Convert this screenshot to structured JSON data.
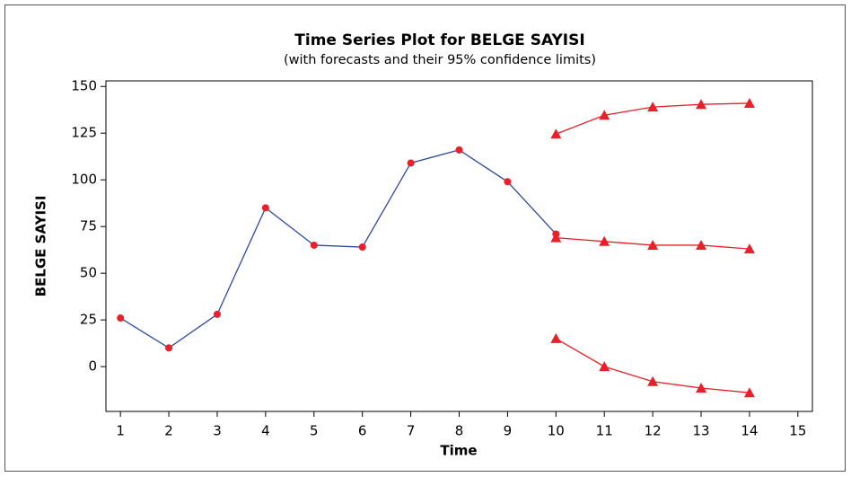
{
  "chart_data": {
    "type": "line",
    "title": "Time Series Plot for BELGE SAYISI",
    "subtitle": "(with forecasts and their 95% confidence limits)",
    "x_label": "Time",
    "y_label": "BELGE SAYISI",
    "series": [
      {
        "color": "#2e4a9c",
        "marker": "circle",
        "marker_color": "#e8202a",
        "x": [
          1,
          2,
          3,
          4,
          5,
          6,
          7,
          8,
          9,
          10
        ],
        "values": [
          26,
          10,
          28,
          85,
          65,
          64,
          109,
          116,
          99,
          71
        ]
      },
      {
        "color": "#e8202a",
        "marker": "triangle",
        "marker_color": "#e8202a",
        "x": [
          10,
          11,
          12,
          13,
          14
        ],
        "values": [
          69,
          67,
          65,
          65,
          63
        ]
      },
      {
        "color": "#e8202a",
        "marker": "triangle",
        "marker_color": "#e8202a",
        "x": [
          10,
          11,
          12,
          13,
          14
        ],
        "values": [
          124.5,
          134.6,
          139,
          140.4,
          141
        ]
      },
      {
        "color": "#e8202a",
        "marker": "triangle",
        "marker_color": "#e8202a",
        "x": [
          10,
          11,
          12,
          13,
          14
        ],
        "values": [
          15,
          0,
          -8,
          -11.5,
          -14
        ]
      }
    ],
    "xlim": [
      0.7,
      15.3
    ],
    "xticks": [
      1,
      2,
      3,
      4,
      5,
      6,
      7,
      8,
      9,
      10,
      11,
      12,
      13,
      14,
      15
    ],
    "ylim": [
      -24,
      153
    ],
    "yticks": [
      0,
      25,
      50,
      75,
      100,
      125,
      150
    ],
    "grid": false
  }
}
